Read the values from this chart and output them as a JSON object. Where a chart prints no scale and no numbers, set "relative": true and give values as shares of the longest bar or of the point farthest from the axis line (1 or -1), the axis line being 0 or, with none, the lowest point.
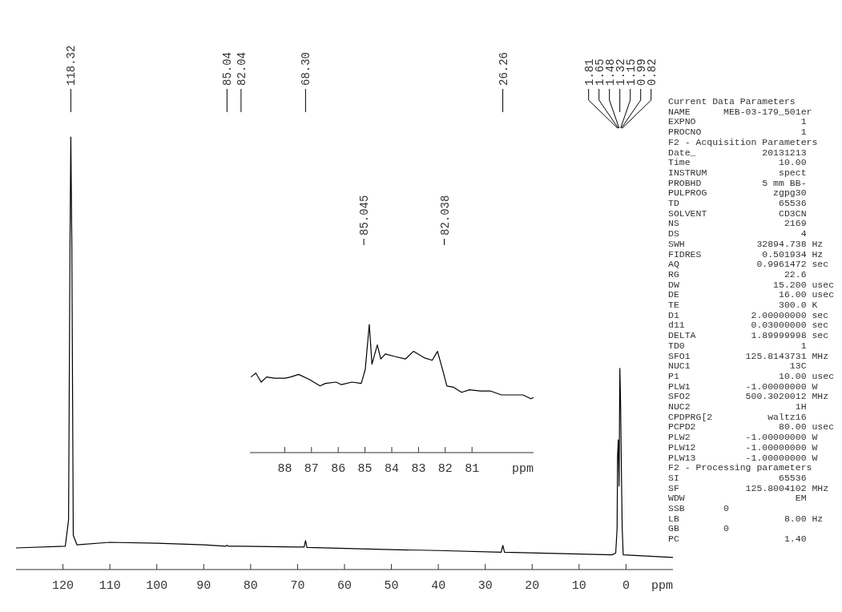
{
  "chart_data": [
    {
      "type": "line",
      "relative": true,
      "xlabel": "ppm",
      "xlim": [
        130,
        -10
      ],
      "xticks": [
        120,
        110,
        100,
        90,
        80,
        70,
        60,
        50,
        40,
        30,
        20,
        10,
        0
      ],
      "grid": false,
      "x": [
        130,
        119.5,
        118.8,
        118.5,
        118.32,
        118.1,
        117.8,
        117,
        110,
        100,
        90,
        85.3,
        85.04,
        84.8,
        82.04,
        70,
        68.6,
        68.3,
        68,
        50,
        40,
        26.6,
        26.26,
        25.9,
        10,
        3,
        2.2,
        1.9,
        1.81,
        1.65,
        1.48,
        1.32,
        1.15,
        0.99,
        0.82,
        0.6,
        -10
      ],
      "series": [
        {
          "color": "#000000",
          "values": [
            0.05,
            0.054,
            0.115,
            0.747,
            1,
            0.747,
            0.079,
            0.057,
            0.063,
            0.061,
            0.057,
            0.054,
            0.056,
            0.054,
            0.054,
            0.052,
            0.052,
            0.067,
            0.051,
            0.046,
            0.044,
            0.04,
            0.056,
            0.04,
            0.036,
            0.034,
            0.038,
            0.096,
            0.261,
            0.3,
            0.193,
            0.465,
            0.378,
            0.232,
            0.096,
            0.034,
            0.028
          ]
        }
      ],
      "annotations": [
        {
          "text": "118.32",
          "x": 118.32
        },
        {
          "text": "85.04",
          "x": 85.04
        },
        {
          "text": "82.04",
          "x": 82.04
        },
        {
          "text": "68.30",
          "x": 68.3
        },
        {
          "text": "26.26",
          "x": 26.26
        },
        {
          "text": "1.81",
          "x": 1.81
        },
        {
          "text": "1.65",
          "x": 1.65
        },
        {
          "text": "1.48",
          "x": 1.48
        },
        {
          "text": "1.32",
          "x": 1.32
        },
        {
          "text": "1.15",
          "x": 1.15
        },
        {
          "text": "0.99",
          "x": 0.99
        },
        {
          "text": "0.82",
          "x": 0.82
        },
        "Current Data Parameters",
        "NAME      MEB-03-179_501er",
        "EXPNO                   1",
        "PROCNO                  1",
        "F2 - Acquisition Parameters",
        "Date_            20131213",
        "Time                10.00",
        "INSTRUM             spect",
        "PROBHD           5 mm BB-",
        "PULPROG            zgpg30",
        "TD                  65536",
        "SOLVENT             CD3CN",
        "NS                   2169",
        "DS                      4",
        "SWH             32894.738 Hz",
        "FIDRES           0.501934 Hz",
        "AQ              0.9961472 sec",
        "RG                   22.6",
        "DW                 15.200 usec",
        "DE                  16.00 usec",
        "TE                  300.0 K",
        "D1             2.00000000 sec",
        "d11            0.03000000 sec",
        "DELTA          1.89999998 sec",
        "TD0                     1",
        "SFO1          125.8143731 MHz",
        "NUC1                  13C",
        "P1                  10.00 usec",
        "PLW1          -1.00000000 W",
        "SFO2          500.3020012 MHz",
        "NUC2                   1H",
        "CPDPRG[2          waltz16",
        "PCPD2               80.00 usec",
        "PLW2          -1.00000000 W",
        "PLW12         -1.00000000 W",
        "PLW13         -1.00000000 W",
        "F2 - Processing parameters",
        "SI                  65536",
        "SF            125.8004102 MHz",
        "WDW                    EM",
        "SSB       0",
        "LB                   8.00 Hz",
        "GB        0",
        "PC                   1.40"
      ]
    },
    {
      "type": "line",
      "relative": true,
      "xlabel": "ppm",
      "xlim": [
        89.3,
        78.7
      ],
      "xticks": [
        88,
        87,
        86,
        85,
        84,
        83,
        82,
        81
      ],
      "grid": false,
      "x": [
        89.26,
        89.08,
        88.88,
        88.68,
        88.38,
        87.98,
        87.78,
        87.48,
        87.08,
        86.68,
        86.48,
        86.08,
        85.88,
        85.49,
        85.14,
        84.99,
        84.84,
        84.74,
        84.54,
        84.41,
        84.24,
        83.89,
        83.49,
        83.19,
        82.79,
        82.49,
        82.29,
        82.09,
        81.94,
        81.69,
        81.39,
        81.09,
        80.69,
        80.3,
        79.9,
        79.5,
        79.1,
        78.8,
        78.7
      ],
      "series": [
        {
          "color": "#000000",
          "values": [
            0.59,
            0.62,
            0.55,
            0.59,
            0.58,
            0.58,
            0.59,
            0.61,
            0.57,
            0.52,
            0.54,
            0.55,
            0.53,
            0.55,
            0.54,
            0.65,
            1,
            0.69,
            0.84,
            0.73,
            0.77,
            0.75,
            0.73,
            0.79,
            0.74,
            0.72,
            0.79,
            0.64,
            0.52,
            0.51,
            0.47,
            0.49,
            0.48,
            0.48,
            0.45,
            0.45,
            0.45,
            0.42,
            0.43
          ]
        }
      ],
      "annotations": [
        {
          "text": "85.045",
          "x": 85.045
        },
        {
          "text": "82.038",
          "x": 82.038
        }
      ]
    }
  ]
}
